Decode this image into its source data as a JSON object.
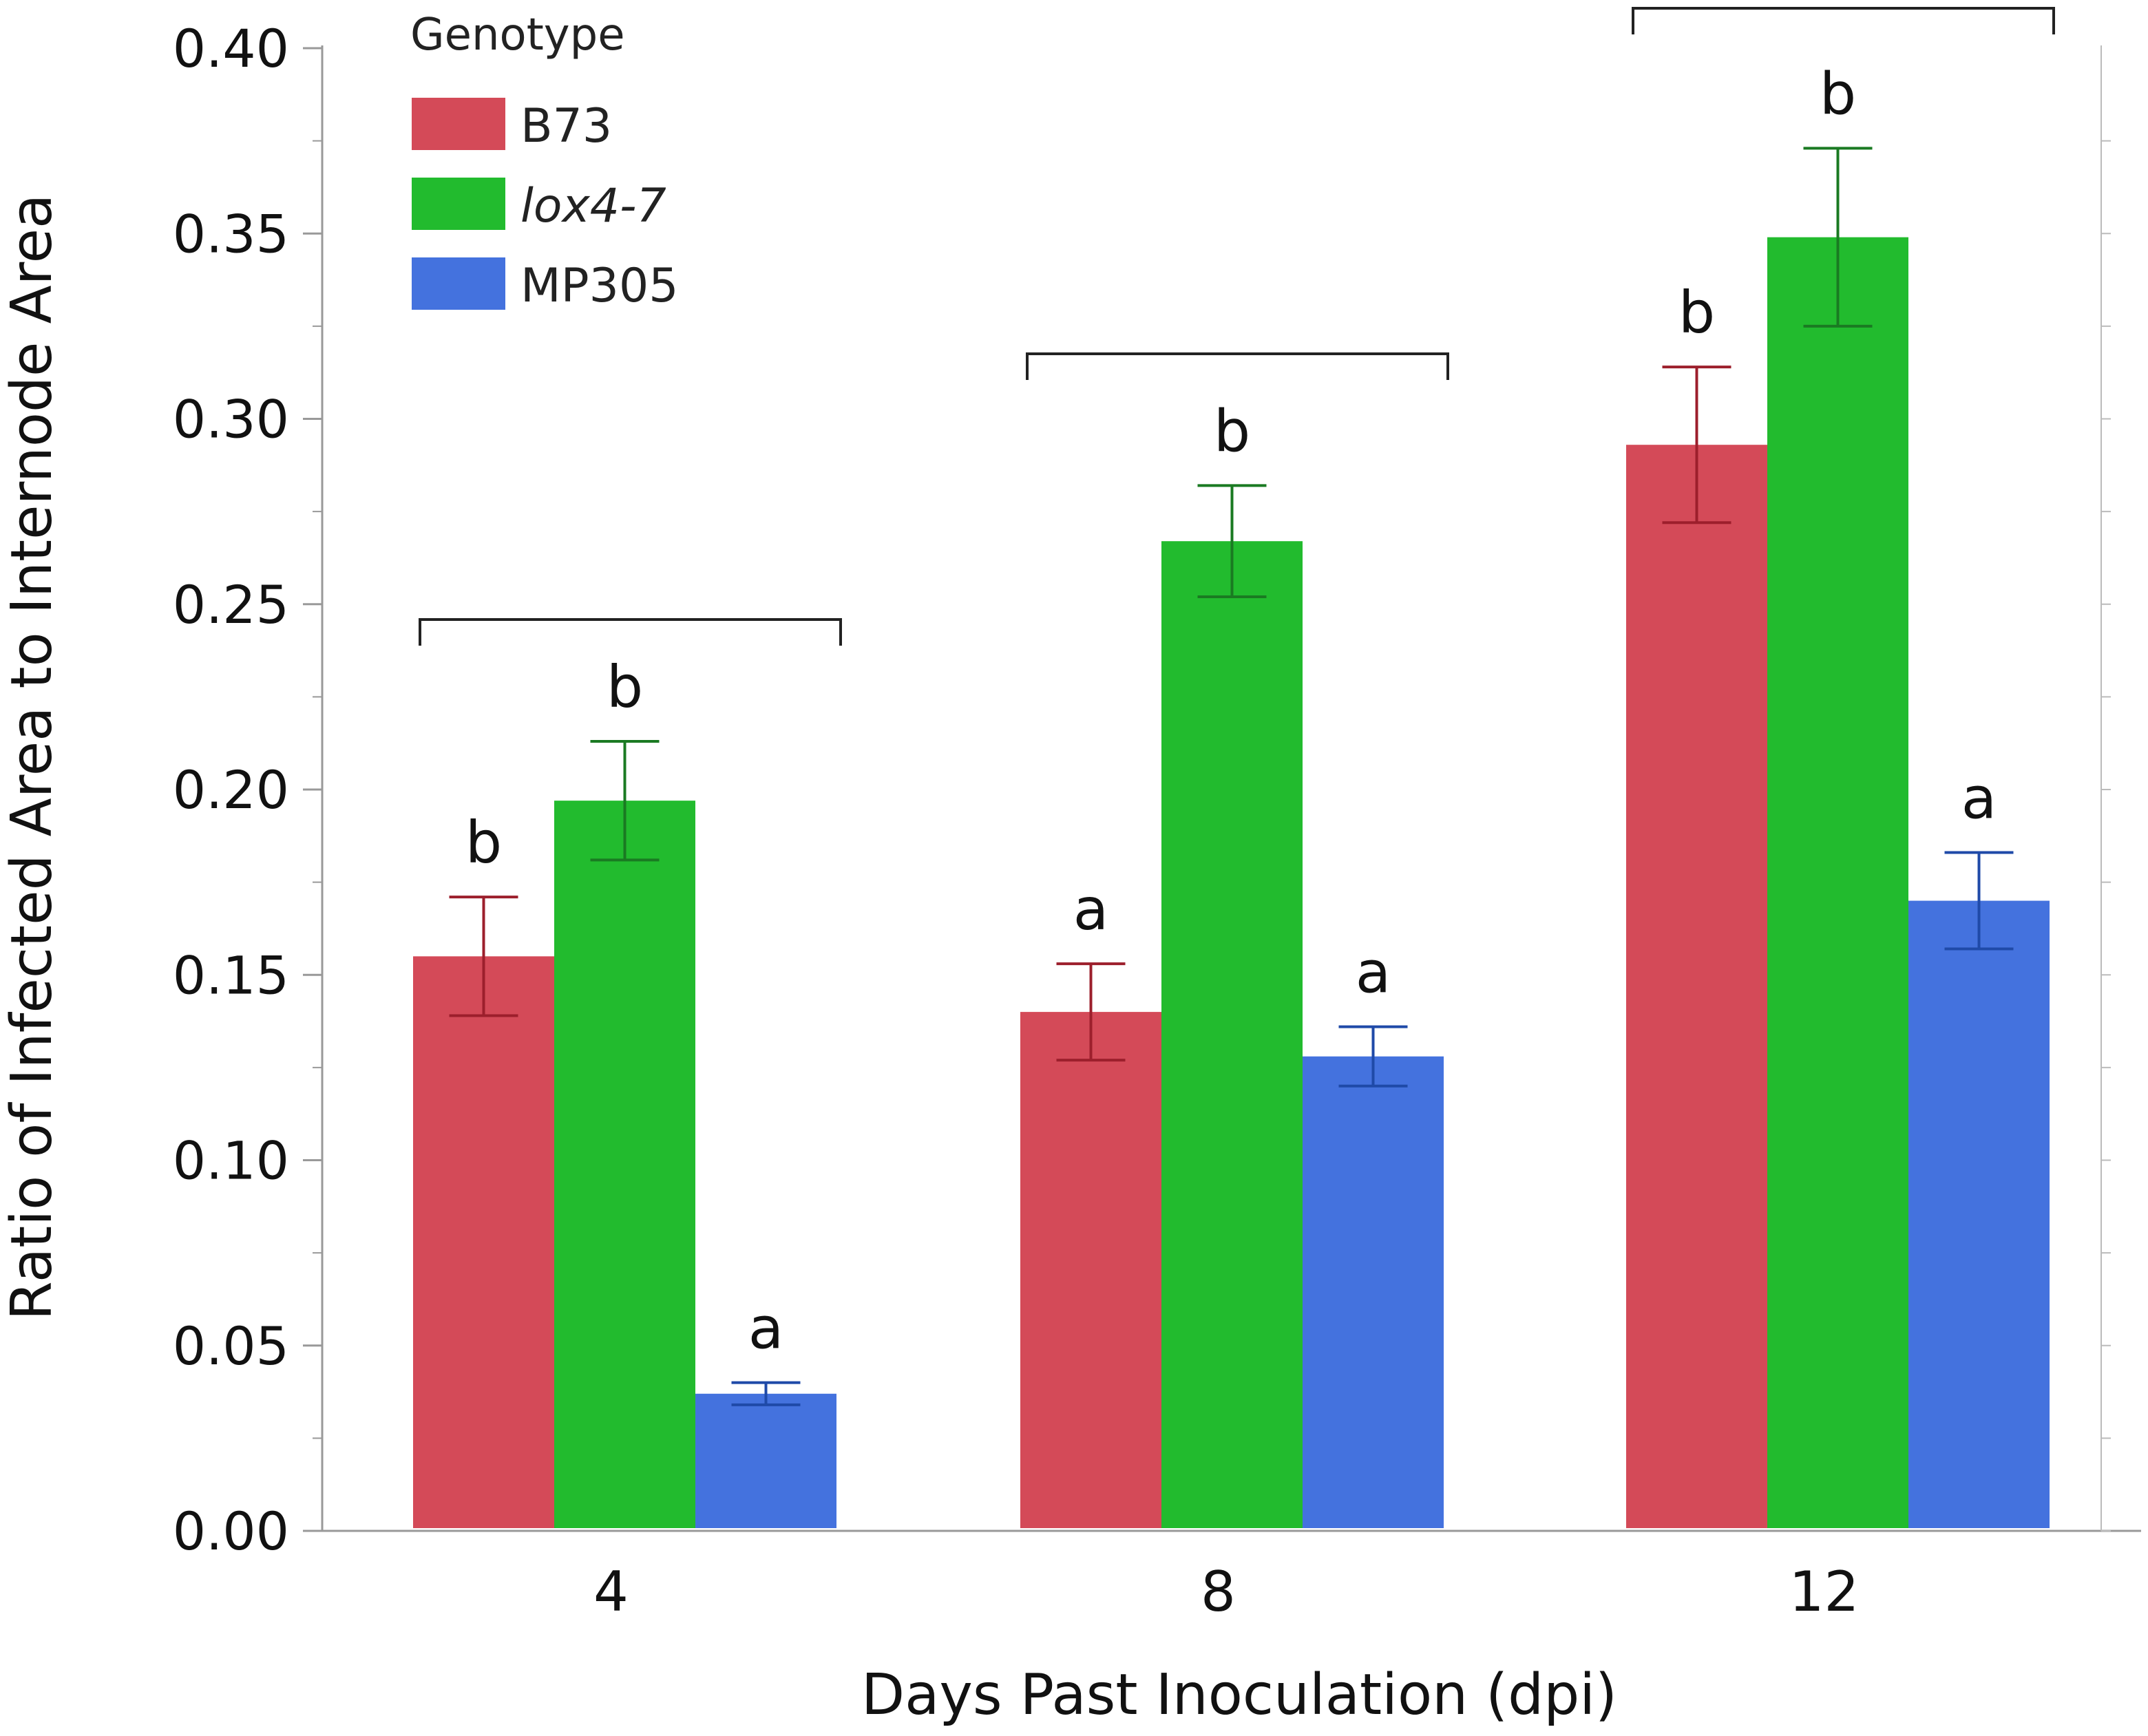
{
  "chart_data": {
    "type": "bar",
    "title": "",
    "xlabel": "Days Past Inoculation (dpi)",
    "ylabel": "Ratio of Infected Area to Internode Area",
    "ylim": [
      0,
      0.4
    ],
    "yticks": [
      "0.00",
      "0.05",
      "0.10",
      "0.15",
      "0.20",
      "0.25",
      "0.30",
      "0.35",
      "0.40"
    ],
    "categories": [
      "4",
      "8",
      "12"
    ],
    "legend_title": "Genotype",
    "legend_position": "top-left",
    "series": [
      {
        "name": "B73",
        "color": "#d44a58",
        "err_color": "#9c1f2c",
        "values": [
          0.155,
          0.14,
          0.293
        ],
        "errors": [
          0.016,
          0.013,
          0.021
        ],
        "letters": [
          "b",
          "a",
          "b"
        ]
      },
      {
        "name": "lox4-7",
        "italic": true,
        "color": "#22bb2e",
        "err_color": "#1a7a22",
        "values": [
          0.197,
          0.267,
          0.349
        ],
        "errors": [
          0.016,
          0.015,
          0.024
        ],
        "letters": [
          "b",
          "b",
          "b"
        ]
      },
      {
        "name": "MP305",
        "color": "#4472de",
        "err_color": "#1f4aa8",
        "values": [
          0.037,
          0.128,
          0.17
        ],
        "errors": [
          0.003,
          0.008,
          0.013
        ],
        "letters": [
          "a",
          "a",
          "a"
        ]
      }
    ]
  }
}
